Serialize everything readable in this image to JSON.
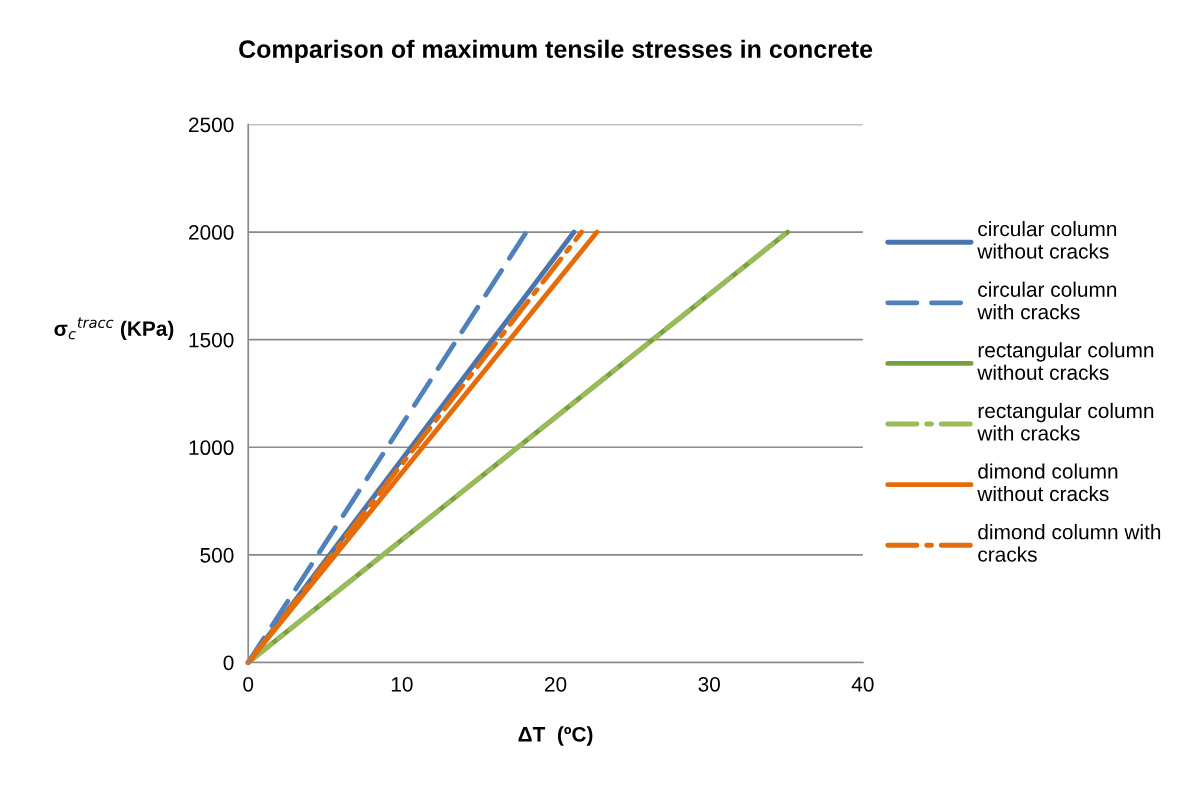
{
  "chart_data": {
    "type": "line",
    "title": "Comparison of maximum tensile stresses in concrete",
    "xlabel": "ΔT  (ºC)",
    "ylabel": "σ$_{c}$$^{tracc}$ (KPa)",
    "series": [
      {
        "name": "circular column without cracks",
        "color": "#4a74ab",
        "line_style": "solid",
        "x": [
          0,
          21.2
        ],
        "values": [
          0,
          2000
        ]
      },
      {
        "name": "circular column with cracks",
        "color": "#4f81bd",
        "line_style": "dashed",
        "x": [
          0,
          18.1
        ],
        "values": [
          0,
          2000
        ]
      },
      {
        "name": "rectangular column without cracks",
        "color": "#77a043",
        "line_style": "solid",
        "x": [
          0,
          35.1
        ],
        "values": [
          0,
          2000
        ]
      },
      {
        "name": "rectangular column with cracks",
        "color": "#9bbb59",
        "line_style": "dashdot",
        "x": [
          0,
          35.1
        ],
        "values": [
          0,
          2000
        ]
      },
      {
        "name": "dimond column without cracks",
        "color": "#e46c0a",
        "line_style": "solid",
        "x": [
          0,
          22.7
        ],
        "values": [
          0,
          2000
        ]
      },
      {
        "name": "dimond column with cracks",
        "color": "#e46c0a",
        "line_style": "dashdot",
        "x": [
          0,
          21.7
        ],
        "values": [
          0,
          2000
        ]
      }
    ],
    "xlim": [
      0,
      40
    ],
    "xticks": [
      0,
      10,
      20,
      30,
      40
    ],
    "ylim": [
      0,
      2500
    ],
    "yticks": [
      0,
      500,
      1000,
      1500,
      2000,
      2500
    ],
    "grid": "y",
    "legend": "right",
    "marker": "none"
  }
}
